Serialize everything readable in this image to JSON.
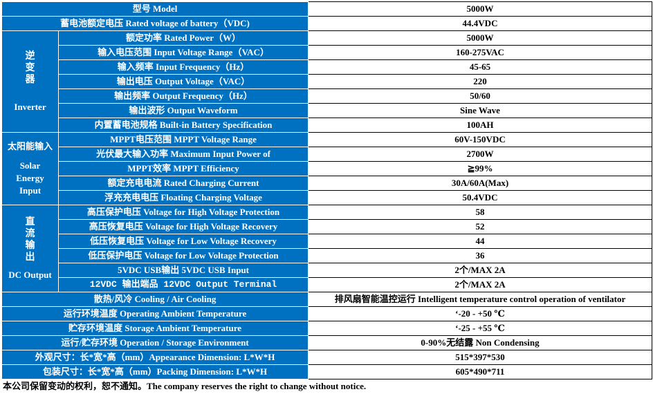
{
  "rows": [
    {
      "label": "型号  Model",
      "value": "5000W"
    },
    {
      "label": "蓄电池额定电压  Rated voltage of battery（VDC)",
      "value": "44.4VDC"
    },
    {
      "label": "额定功率  Rated Power（W）",
      "value": "5000W"
    },
    {
      "label": "输入电压范围  Input Voltage Range（VAC）",
      "value": "160-275VAC"
    },
    {
      "label": "输入频率  Input Frequency（Hz）",
      "value": "45-65"
    },
    {
      "label": "输出电压  Output Voltage（VAC）",
      "value": "220"
    },
    {
      "label": "输出频率  Output Frequency（Hz）",
      "value": "50/60"
    },
    {
      "label": "输出波形  Output Waveform",
      "value": "Sine Wave"
    },
    {
      "label": "内置蓄电池规格  Built-in Battery Specification",
      "value": "100AH"
    },
    {
      "label": "MPPT电压范围  MPPT Voltage Range",
      "value": "60V-150VDC"
    },
    {
      "label": "光伏最大输入功率  Maximum Input Power of",
      "value": "2700W"
    },
    {
      "label": "MPPT效率  MPPT Efficiency",
      "value": "≧99%"
    },
    {
      "label": "额定充电电流  Rated Charging Current",
      "value": "30A/60A(Max)"
    },
    {
      "label": "浮充充电电压  Floating Charging Voltage",
      "value": "50.4VDC"
    },
    {
      "label": "高压保护电压  Voltage for High Voltage Protection",
      "value": "58"
    },
    {
      "label": "高压恢复电压  Voltage for High Voltage Recovery",
      "value": "52"
    },
    {
      "label": "低压恢复电压  Voltage for Low Voltage Recovery",
      "value": "44"
    },
    {
      "label": "低压保护电压  Voltage for Low Voltage Protection",
      "value": "36"
    },
    {
      "label": "5VDC USB输出 5VDC USB Input",
      "value": "2个/MAX 2A"
    },
    {
      "label": "12VDC 输出端品 12VDC Output Terminal",
      "value": "2个/MAX 2A"
    },
    {
      "label": "散热/风冷  Cooling / Air Cooling",
      "value": "排风扇智能温控运行  Intelligent temperature control operation of ventilator"
    },
    {
      "label": "运行环境温度  Operating Ambient Temperature",
      "value": "‘-20 - +50 ℃"
    },
    {
      "label": "贮存环境温度  Storage Ambient Temperature",
      "value": "‘-25 - +55 ℃"
    },
    {
      "label": "运行/贮存环境  Operation / Storage Environment",
      "value": "0-90%无结露 Non Condensing"
    },
    {
      "label": "外观尺寸：长*宽*高（mm）Appearance Dimension: L*W*H",
      "value": "515*397*530"
    },
    {
      "label": "包装尺寸：长*宽*高（mm）Packing Dimension: L*W*H",
      "value": "605*490*711"
    }
  ],
  "groups": {
    "inverter": {
      "cn": "逆变器",
      "en": "Inverter"
    },
    "solar": {
      "cn": "太阳能输入",
      "en": "Solar Energy Input"
    },
    "dc": {
      "cn": "直流输出",
      "en": "DC Output"
    }
  },
  "footer": "本公司保留变动的权利，恕不通知。The company reserves the right to change without notice.",
  "colors": {
    "header_bg": "#0070c0",
    "header_text": "#ffffff"
  }
}
